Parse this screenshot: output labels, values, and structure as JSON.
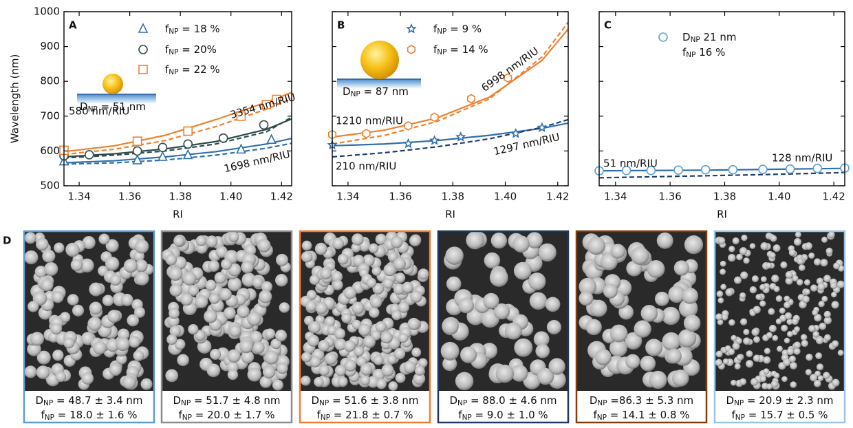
{
  "chart_data": [
    {
      "type": "scatter",
      "panel": "A",
      "ylabel": "Wavelength (nm)",
      "xlabel": "RI",
      "xlim": [
        1.334,
        1.424
      ],
      "ylim": [
        500,
        1000
      ],
      "xticks": [
        1.34,
        1.36,
        1.38,
        {
          "value": 1.4,
          "label": "1.40"
        },
        1.42
      ],
      "yticks": [
        500,
        600,
        700,
        800,
        900,
        1000
      ],
      "show_ytick_labels": true,
      "inset_label": "DNP = 51 nm",
      "annotations": [
        "580 nm/RIU",
        "3354 nm/RIU",
        "1698 nm/RIU"
      ],
      "series": [
        {
          "name": "fNP = 18 %",
          "color": "#2f6fad",
          "marker": "triangle",
          "x": [
            1.334,
            1.363,
            1.373,
            1.383,
            1.404,
            1.416
          ],
          "values": [
            570,
            573,
            583,
            588,
            604,
            632
          ],
          "fit": {
            "color": "#2f6fad",
            "x": [
              1.334,
              1.354,
              1.374,
              1.394,
              1.414,
              1.424
            ],
            "values": [
              566,
              572,
              583,
              598,
              620,
              636
            ]
          },
          "dashed": {
            "color": "#2f6fad",
            "x": [
              1.334,
              1.354,
              1.374,
              1.394,
              1.414,
              1.424
            ],
            "values": [
              562,
              566,
              574,
              588,
              608,
              622
            ]
          }
        },
        {
          "name": "fNP = 20%",
          "color": "#2e4a4a",
          "marker": "circle",
          "x": [
            1.334,
            1.344,
            1.363,
            1.373,
            1.383,
            1.397,
            1.413
          ],
          "values": [
            586,
            589,
            600,
            610,
            620,
            637,
            675
          ],
          "fit": {
            "color": "#2e4a4a",
            "x": [
              1.334,
              1.354,
              1.374,
              1.394,
              1.414,
              1.424
            ],
            "values": [
              583,
              592,
              606,
              627,
              662,
              692
            ]
          },
          "dashed": {
            "color": "#2e4a4a",
            "x": [
              1.334,
              1.354,
              1.374,
              1.394,
              1.414,
              1.424
            ],
            "values": [
              580,
              588,
              600,
              620,
              655,
              697
            ]
          }
        },
        {
          "name": "fNP = 22 %",
          "color": "#f07f2e",
          "marker": "square",
          "x": [
            1.334,
            1.363,
            1.383,
            1.404,
            1.414,
            1.418
          ],
          "values": [
            602,
            628,
            657,
            700,
            733,
            748
          ],
          "fit": {
            "color": "#f07f2e",
            "x": [
              1.334,
              1.354,
              1.374,
              1.394,
              1.414,
              1.424
            ],
            "values": [
              598,
              615,
              645,
              690,
              740,
              768
            ]
          },
          "dashed": {
            "color": "#f07f2e",
            "x": [
              1.334,
              1.354,
              1.374,
              1.394,
              1.414,
              1.424
            ],
            "values": [
              590,
              605,
              630,
              670,
              720,
              750
            ]
          }
        }
      ]
    },
    {
      "type": "scatter",
      "panel": "B",
      "xlabel": "RI",
      "xlim": [
        1.334,
        1.424
      ],
      "ylim": [
        500,
        1000
      ],
      "xticks": [
        1.34,
        1.36,
        1.38,
        {
          "value": 1.4,
          "label": "1.40"
        },
        1.42
      ],
      "yticks": [
        500,
        600,
        700,
        800,
        900,
        1000
      ],
      "show_ytick_labels": false,
      "inset_label": "DNP = 87 nm",
      "annotations": [
        "1210 nm/RIU",
        "6998 nm/RIU",
        "210 nm/RIU",
        "1297 nm/RIU"
      ],
      "series": [
        {
          "name": "fNP = 9 %",
          "color": "#2f6fad",
          "marker": "star",
          "x": [
            1.334,
            1.363,
            1.373,
            1.383,
            1.404,
            1.414
          ],
          "values": [
            617,
            621,
            630,
            640,
            650,
            667
          ],
          "fit": {
            "color": "#2f6fad",
            "x": [
              1.334,
              1.354,
              1.374,
              1.394,
              1.414,
              1.424
            ],
            "values": [
              615,
              620,
              630,
              645,
              665,
              680
            ]
          },
          "dashed": {
            "color": "#1f3b73",
            "x": [
              1.334,
              1.354,
              1.374,
              1.394,
              1.414,
              1.424
            ],
            "values": [
              583,
              595,
              612,
              635,
              668,
              690
            ]
          }
        },
        {
          "name": "fNP = 14 %",
          "color": "#f07f2e",
          "marker": "hexagon",
          "x": [
            1.334,
            1.347,
            1.363,
            1.373,
            1.387,
            1.401
          ],
          "values": [
            647,
            650,
            672,
            697,
            750,
            810
          ],
          "fit": {
            "color": "#f07f2e",
            "x": [
              1.334,
              1.354,
              1.374,
              1.394,
              1.414,
              1.424
            ],
            "values": [
              640,
              660,
              695,
              755,
              860,
              950
            ]
          },
          "dashed": {
            "color": "#f07f2e",
            "x": [
              1.334,
              1.354,
              1.374,
              1.394,
              1.414,
              1.424
            ],
            "values": [
              620,
              645,
              685,
              750,
              870,
              970
            ]
          }
        }
      ]
    },
    {
      "type": "scatter",
      "panel": "C",
      "xlabel": "RI",
      "xlim": [
        1.334,
        1.424
      ],
      "ylim": [
        500,
        1000
      ],
      "xticks": [
        1.34,
        1.36,
        1.38,
        {
          "value": 1.4,
          "label": "1.40"
        },
        1.42
      ],
      "yticks": [
        500,
        600,
        700,
        800,
        900,
        1000
      ],
      "show_ytick_labels": false,
      "annotations": [
        "51 nm/RIU",
        "128 nm/RIU"
      ],
      "series": [
        {
          "name": "DNP 21 nm",
          "note": "fNP 16 %",
          "color": "#5aa0d0",
          "marker": "circle",
          "x": [
            1.334,
            1.344,
            1.353,
            1.363,
            1.373,
            1.383,
            1.394,
            1.404,
            1.414,
            1.424
          ],
          "values": [
            543,
            544,
            544,
            545,
            546,
            546,
            547,
            548,
            550,
            551
          ],
          "fit": {
            "color": "#2f6fad",
            "x": [
              1.334,
              1.354,
              1.374,
              1.394,
              1.414,
              1.424
            ],
            "values": [
              543,
              544,
              545,
              547,
              549,
              550
            ]
          },
          "dashed": {
            "color": "#1f3b73",
            "x": [
              1.334,
              1.354,
              1.374,
              1.394,
              1.414,
              1.424
            ],
            "values": [
              523,
              526,
              529,
              532,
              536,
              538
            ]
          }
        }
      ]
    }
  ],
  "panel_d": {
    "label": "D",
    "images": [
      {
        "border": "#5b9bd5",
        "caption": [
          "DNP = 48.7 ± 3.4 nm",
          "fNP = 18.0 ± 1.6 %"
        ]
      },
      {
        "border": "#8c8c8c",
        "caption": [
          "DNP = 51.7 ± 4.8 nm",
          "fNP = 20.0 ± 1.7 %"
        ]
      },
      {
        "border": "#ed7d31",
        "caption": [
          "DNP = 51.6 ± 3.8 nm",
          "fNP = 21.8 ± 0.7 %"
        ]
      },
      {
        "border": "#1f3864",
        "caption": [
          "DNP = 88.0 ± 4.6 nm",
          "fNP = 9.0 ± 1.0 %"
        ]
      },
      {
        "border": "#843c0c",
        "caption": [
          "DNP =86.3 ± 5.3 nm",
          "fNP = 14.1 ± 0.8 %"
        ]
      },
      {
        "border": "#9dc3e6",
        "caption": [
          "DNP = 20.9 ± 2.3 nm",
          "fNP = 15.7 ± 0.5 %"
        ]
      }
    ]
  }
}
